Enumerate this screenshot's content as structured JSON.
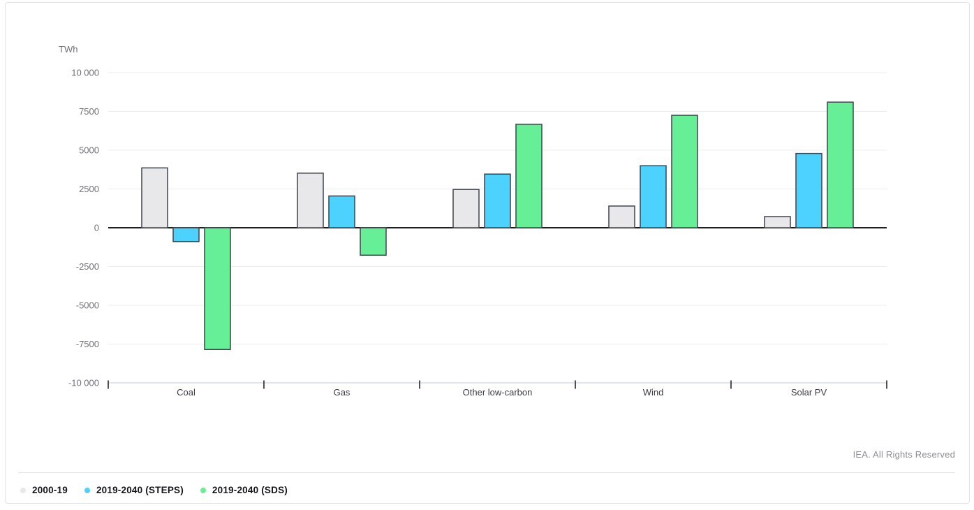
{
  "footer": {
    "copyright": "IEA. All Rights Reserved"
  },
  "colors": {
    "grid": "#ececee",
    "axis_line": "#ccd6e3",
    "zero_line": "#000000",
    "tick": "#16181d",
    "tick_label": "#70707a",
    "category_label": "#3c3c47",
    "unit_label": "#70707a",
    "bar_border": "#3f444c"
  },
  "chart_data": {
    "type": "bar",
    "title": "",
    "unit_label": "TWh",
    "xlabel": "",
    "ylabel": "TWh",
    "categories": [
      "Coal",
      "Gas",
      "Other low-carbon",
      "Wind",
      "Solar PV"
    ],
    "series": [
      {
        "name": "2000-19",
        "color": "#e8e8ea",
        "values": [
          3860,
          3520,
          2470,
          1400,
          720
        ]
      },
      {
        "name": "2019-2040 (STEPS)",
        "color": "#4cd2fd",
        "values": [
          -890,
          2050,
          3460,
          4000,
          4790
        ]
      },
      {
        "name": "2019-2040 (SDS)",
        "color": "#67ef98",
        "values": [
          -7850,
          -1770,
          6670,
          7250,
          8100
        ]
      }
    ],
    "ylim": [
      -10000,
      10000
    ],
    "yticks": [
      {
        "value": 10000,
        "label": "10 000"
      },
      {
        "value": 7500,
        "label": "7500"
      },
      {
        "value": 5000,
        "label": "5000"
      },
      {
        "value": 2500,
        "label": "2500"
      },
      {
        "value": 0,
        "label": "0"
      },
      {
        "value": -2500,
        "label": "-2500"
      },
      {
        "value": -5000,
        "label": "-5000"
      },
      {
        "value": -7500,
        "label": "-7500"
      },
      {
        "value": -10000,
        "label": "-10 000"
      }
    ],
    "grid": true,
    "legend_position": "bottom-left"
  }
}
